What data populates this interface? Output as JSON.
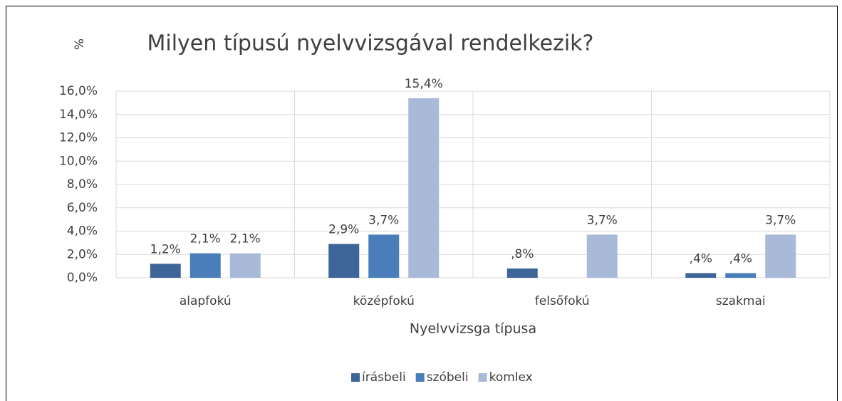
{
  "chart_data": {
    "type": "bar",
    "title": "Milyen típusú nyelvvizsgával rendelkezik?",
    "y_label": "%",
    "x_label": "Nyelvvizsga típusa",
    "categories": [
      "alapfokú",
      "középfokú",
      "felsőfokú",
      "szakmai"
    ],
    "series": [
      {
        "name": "írásbeli",
        "color": "#3e6598",
        "values": [
          1.2,
          2.9,
          0.8,
          0.4
        ],
        "value_labels": [
          "1,2%",
          "2,9%",
          ",8%",
          ",4%"
        ]
      },
      {
        "name": "szóbeli",
        "color": "#4a7ebb",
        "values": [
          2.1,
          3.7,
          null,
          0.4
        ],
        "value_labels": [
          "2,1%",
          "3,7%",
          null,
          ",4%"
        ]
      },
      {
        "name": "komlex",
        "color": "#a9bad9",
        "values": [
          2.1,
          15.4,
          3.7,
          3.7
        ],
        "value_labels": [
          "2,1%",
          "15,4%",
          "3,7%",
          "3,7%"
        ]
      }
    ],
    "ylim": [
      0,
      16
    ],
    "yticks": [
      {
        "value": 0,
        "label": "0,0%"
      },
      {
        "value": 2,
        "label": "2,0%"
      },
      {
        "value": 4,
        "label": "4,0%"
      },
      {
        "value": 6,
        "label": "6,0%"
      },
      {
        "value": 8,
        "label": "8,0%"
      },
      {
        "value": 10,
        "label": "10,0%"
      },
      {
        "value": 12,
        "label": "12,0%"
      },
      {
        "value": 14,
        "label": "14,0%"
      },
      {
        "value": 16,
        "label": "16,0%"
      }
    ],
    "grid": true,
    "legend": "bottom"
  }
}
